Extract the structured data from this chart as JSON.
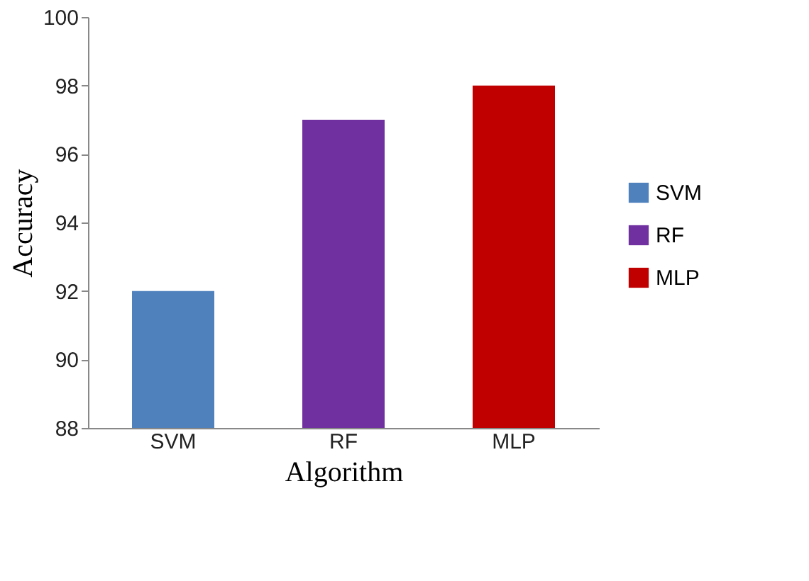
{
  "chart_data": {
    "type": "bar",
    "xlabel": "Algorithm",
    "ylabel": "Accuracy",
    "categories": [
      "SVM",
      "RF",
      "MLP"
    ],
    "series": [
      {
        "name": "SVM",
        "color": "#4f81bd",
        "values": [
          92,
          null,
          null
        ]
      },
      {
        "name": "RF",
        "color": "#7030a0",
        "values": [
          null,
          97,
          null
        ]
      },
      {
        "name": "MLP",
        "color": "#c00000",
        "values": [
          null,
          null,
          98
        ]
      }
    ],
    "ylim": [
      88,
      100
    ],
    "yticks": [
      88,
      90,
      92,
      94,
      96,
      98,
      100
    ],
    "grid": false,
    "legend": "right"
  }
}
